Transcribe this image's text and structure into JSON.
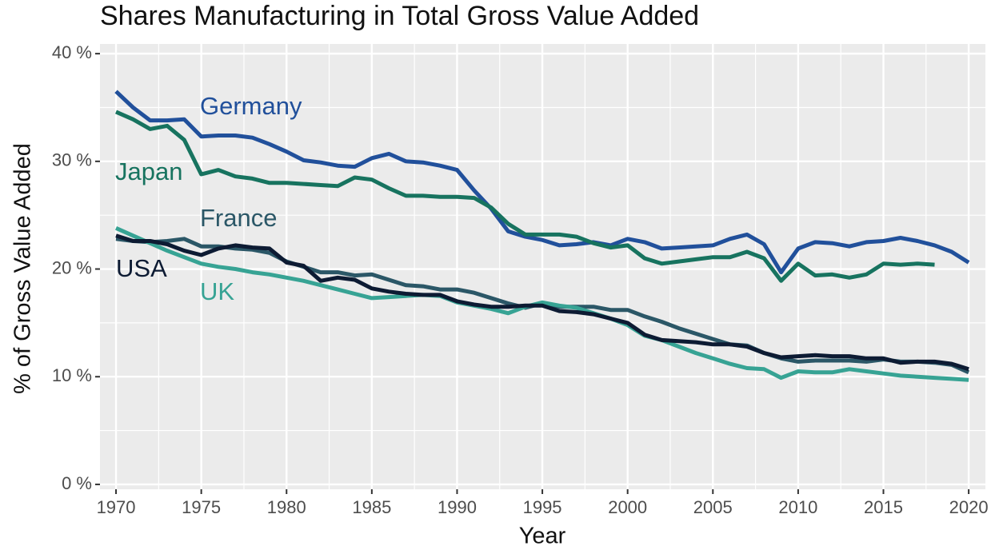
{
  "chart_data": {
    "type": "line",
    "title": "Shares Manufacturing in Total Gross Value Added",
    "x_label": "Year",
    "y_label": "% of Gross Value Added",
    "x": [
      1970,
      1971,
      1972,
      1973,
      1974,
      1975,
      1976,
      1977,
      1978,
      1979,
      1980,
      1981,
      1982,
      1983,
      1984,
      1985,
      1986,
      1987,
      1988,
      1989,
      1990,
      1991,
      1992,
      1993,
      1994,
      1995,
      1996,
      1997,
      1998,
      1999,
      2000,
      2001,
      2002,
      2003,
      2004,
      2005,
      2006,
      2007,
      2008,
      2009,
      2010,
      2011,
      2012,
      2013,
      2014,
      2015,
      2016,
      2017,
      2018,
      2019,
      2020
    ],
    "xlim": [
      1969.06,
      2020.98
    ],
    "xticks": [
      1970,
      1975,
      1980,
      1985,
      1990,
      1995,
      2000,
      2005,
      2010,
      2015,
      2020
    ],
    "ylim": [
      -0.45,
      40.9
    ],
    "yticks": [
      {
        "value": 0,
        "label": "0 %"
      },
      {
        "value": 10,
        "label": "10 %"
      },
      {
        "value": 20,
        "label": "20 %"
      },
      {
        "value": 30,
        "label": "30 %"
      },
      {
        "value": 40,
        "label": "40 %"
      }
    ],
    "grid": true,
    "series": [
      {
        "name": "Germany",
        "color": "#21509b",
        "values": [
          36.5,
          35.0,
          33.8,
          33.8,
          33.9,
          32.3,
          32.4,
          32.4,
          32.2,
          31.6,
          30.9,
          30.1,
          29.9,
          29.6,
          29.5,
          30.3,
          30.7,
          30.0,
          29.9,
          29.6,
          29.2,
          27.3,
          25.6,
          23.5,
          23.0,
          22.7,
          22.2,
          22.3,
          22.5,
          22.2,
          22.8,
          22.5,
          21.9,
          22.0,
          22.1,
          22.2,
          22.8,
          23.2,
          22.3,
          19.7,
          21.9,
          22.5,
          22.4,
          22.1,
          22.5,
          22.6,
          22.9,
          22.6,
          22.2,
          21.6,
          20.6
        ]
      },
      {
        "name": "Japan",
        "color": "#17735f",
        "values": [
          34.6,
          33.9,
          33.0,
          33.3,
          32.0,
          28.8,
          29.2,
          28.6,
          28.4,
          28.0,
          28.0,
          27.9,
          27.8,
          27.7,
          28.5,
          28.3,
          27.5,
          26.8,
          26.8,
          26.7,
          26.7,
          26.6,
          25.7,
          24.2,
          23.2,
          23.2,
          23.2,
          23.0,
          22.4,
          22.0,
          22.2,
          21.0,
          20.5,
          20.7,
          20.9,
          21.1,
          21.1,
          21.6,
          21.0,
          18.9,
          20.5,
          19.4,
          19.5,
          19.2,
          19.5,
          20.5,
          20.4,
          20.5,
          20.4,
          null,
          null
        ]
      },
      {
        "name": "France",
        "color": "#2b5767",
        "values": [
          22.8,
          22.6,
          22.5,
          22.6,
          22.8,
          22.1,
          22.1,
          21.9,
          21.8,
          21.5,
          20.7,
          20.2,
          19.7,
          19.7,
          19.4,
          19.5,
          19.0,
          18.5,
          18.4,
          18.1,
          18.1,
          17.8,
          17.3,
          16.8,
          16.4,
          16.8,
          16.5,
          16.5,
          16.5,
          16.2,
          16.2,
          15.6,
          15.1,
          14.5,
          14.0,
          13.5,
          13.0,
          12.9,
          12.2,
          11.7,
          11.4,
          11.5,
          11.5,
          11.5,
          11.4,
          11.6,
          11.4,
          11.4,
          11.3,
          11.1,
          10.4
        ]
      },
      {
        "name": "UK",
        "color": "#37a394",
        "values": [
          23.8,
          23.1,
          22.4,
          21.7,
          21.1,
          20.5,
          20.2,
          20.0,
          19.7,
          19.5,
          19.2,
          18.9,
          18.5,
          18.1,
          17.7,
          17.3,
          17.4,
          17.5,
          17.6,
          17.5,
          16.9,
          16.6,
          16.3,
          15.9,
          16.5,
          16.9,
          16.6,
          16.4,
          15.9,
          15.4,
          14.8,
          13.8,
          13.4,
          12.8,
          12.2,
          11.7,
          11.2,
          10.8,
          10.7,
          9.9,
          10.5,
          10.4,
          10.4,
          10.7,
          10.5,
          10.3,
          10.1,
          10.0,
          9.9,
          9.8,
          9.7
        ]
      },
      {
        "name": "USA",
        "color": "#0d1b33",
        "values": [
          23.1,
          22.6,
          22.6,
          22.3,
          21.7,
          21.3,
          21.9,
          22.2,
          22.0,
          21.9,
          20.6,
          20.3,
          18.9,
          19.2,
          19.0,
          18.2,
          17.9,
          17.7,
          17.6,
          17.6,
          17.0,
          16.7,
          16.5,
          16.5,
          16.6,
          16.6,
          16.1,
          16.0,
          15.8,
          15.4,
          15.0,
          13.9,
          13.4,
          13.3,
          13.2,
          13.0,
          13.0,
          12.8,
          12.2,
          11.8,
          11.9,
          12.0,
          11.9,
          11.9,
          11.7,
          11.7,
          11.3,
          11.4,
          11.4,
          11.2,
          10.7
        ]
      }
    ]
  }
}
